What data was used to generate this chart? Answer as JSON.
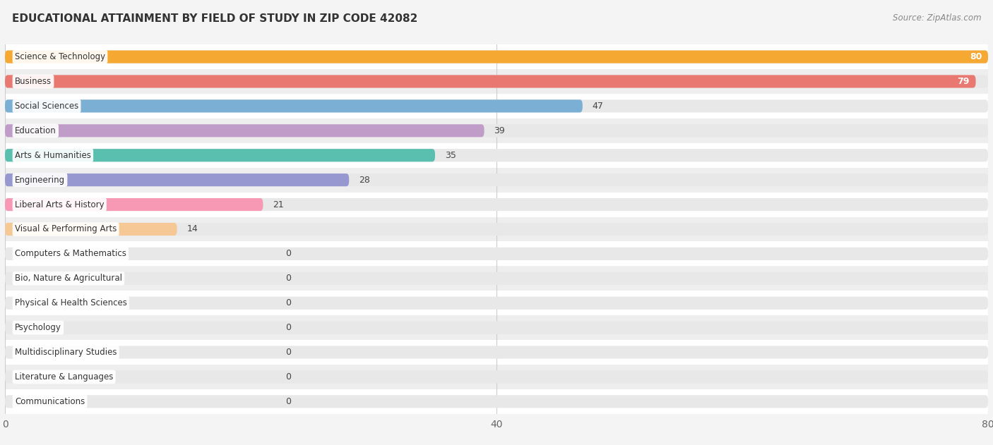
{
  "title": "EDUCATIONAL ATTAINMENT BY FIELD OF STUDY IN ZIP CODE 42082",
  "source": "Source: ZipAtlas.com",
  "categories": [
    "Science & Technology",
    "Business",
    "Social Sciences",
    "Education",
    "Arts & Humanities",
    "Engineering",
    "Liberal Arts & History",
    "Visual & Performing Arts",
    "Computers & Mathematics",
    "Bio, Nature & Agricultural",
    "Physical & Health Sciences",
    "Psychology",
    "Multidisciplinary Studies",
    "Literature & Languages",
    "Communications"
  ],
  "values": [
    80,
    79,
    47,
    39,
    35,
    28,
    21,
    14,
    0,
    0,
    0,
    0,
    0,
    0,
    0
  ],
  "bar_colors": [
    "#F5A832",
    "#E87870",
    "#7BAFD4",
    "#C09DC8",
    "#5BBFB0",
    "#9898D0",
    "#F799B4",
    "#F5C896",
    "#F5A0A8",
    "#90B8D8",
    "#C0A0D0",
    "#60C0C0",
    "#A0A0D0",
    "#F799B4",
    "#F5C896"
  ],
  "xlim_max": 80,
  "xticks": [
    0,
    40,
    80
  ],
  "background_color": "#f4f4f4",
  "row_odd_color": "#ffffff",
  "row_even_color": "#eeeeee",
  "title_fontsize": 11,
  "source_fontsize": 8.5,
  "bar_height": 0.52,
  "track_color": "#e8e8e8"
}
